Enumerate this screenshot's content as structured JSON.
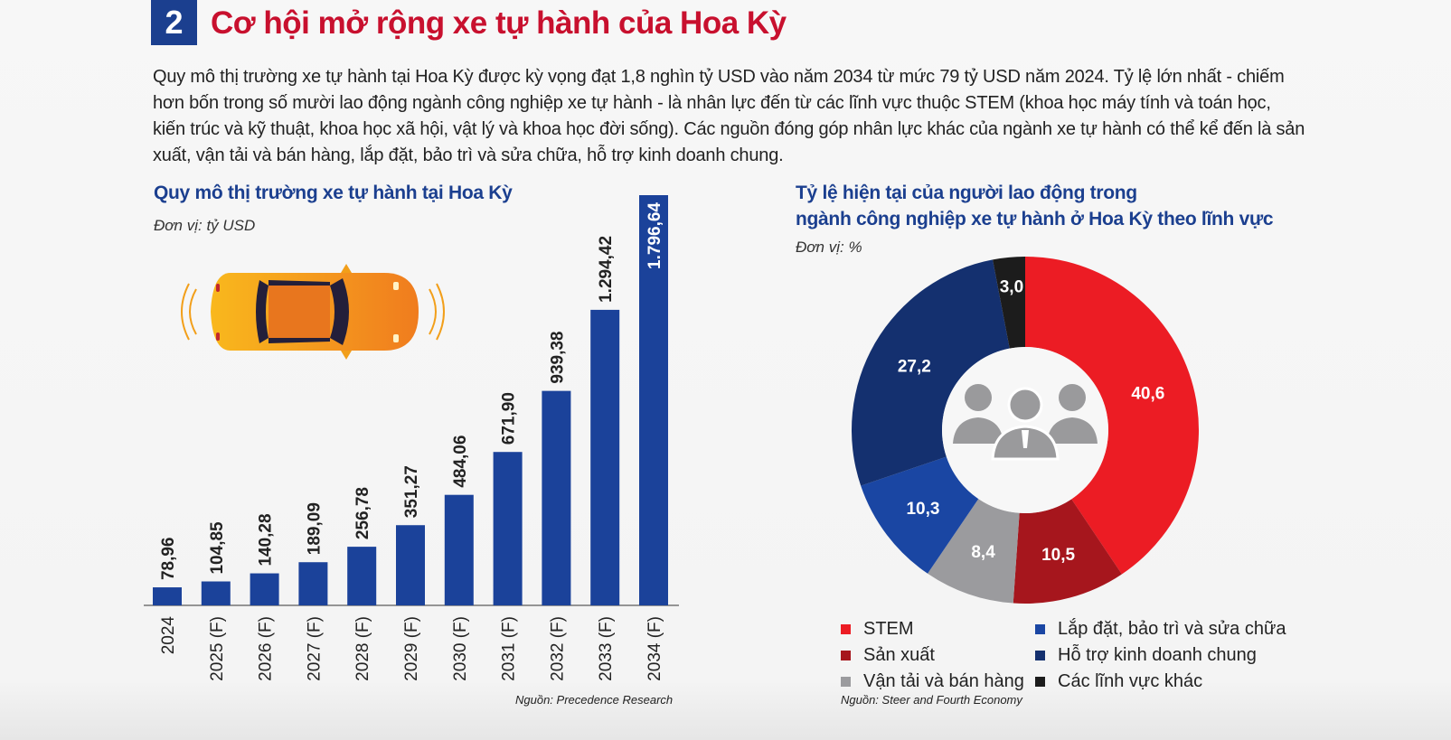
{
  "header": {
    "number": "2",
    "title": "Cơ hội mở rộng xe tự hành của Hoa Kỳ",
    "intro": "Quy mô thị trường xe tự hành tại Hoa Kỳ được kỳ vọng đạt 1,8 nghìn tỷ USD vào năm 2034 từ mức 79 tỷ USD năm 2024. Tỷ lệ lớn nhất - chiếm hơn bốn trong số mười lao động ngành công nghiệp xe tự hành - là nhân lực đến từ các lĩnh vực thuộc STEM (khoa học máy tính và toán học, kiến trúc và kỹ thuật, khoa học xã hội, vật lý và khoa học đời sống). Các nguồn đóng góp nhân lực khác của ngành xe tự hành có thể kể đến là sản xuất, vận tải và bán hàng, lắp đặt, bảo trì và sửa chữa, hỗ trợ kinh doanh chung."
  },
  "left_panel": {
    "title": "Quy mô thị trường xe tự hành tại Hoa Kỳ",
    "unit": "Đơn vị: tỷ USD",
    "source": "Nguồn: Precedence Research",
    "illustration": "car-top-view-icon"
  },
  "right_panel": {
    "title_line1": "Tỷ lệ hiện tại của người lao động trong",
    "title_line2": "ngành công nghiệp xe tự hành ở Hoa Kỳ theo lĩnh vực",
    "unit": "Đơn vị: %",
    "source": "Nguồn: Steer and Fourth Economy",
    "center_icon": "people-group-icon"
  },
  "chart_data": [
    {
      "type": "bar",
      "title": "Quy mô thị trường xe tự hành tại Hoa Kỳ",
      "ylabel": "",
      "unit": "tỷ USD",
      "categories": [
        "2024",
        "2025 (F)",
        "2026 (F)",
        "2027 (F)",
        "2028 (F)",
        "2029 (F)",
        "2030 (F)",
        "2031 (F)",
        "2032 (F)",
        "2033 (F)",
        "2034 (F)"
      ],
      "values": [
        78.96,
        104.85,
        140.28,
        189.09,
        256.78,
        351.27,
        484.06,
        671.9,
        939.38,
        1294.42,
        1796.64
      ],
      "value_labels": [
        "78,96",
        "104,85",
        "140,28",
        "189,09",
        "256,78",
        "351,27",
        "484,06",
        "671,90",
        "939,38",
        "1.294,42",
        "1.796,64"
      ],
      "color": "#1b429a",
      "grid": false
    },
    {
      "type": "pie",
      "subtype": "donut",
      "title": "Tỷ lệ hiện tại của người lao động trong ngành công nghiệp xe tự hành ở Hoa Kỳ theo lĩnh vực",
      "unit": "%",
      "slices": [
        {
          "label": "STEM",
          "value": 40.6,
          "display": "40,6",
          "color": "#ec1c24"
        },
        {
          "label": "Sản xuất",
          "value": 10.5,
          "display": "10,5",
          "color": "#a6161d"
        },
        {
          "label": "Vận tải và bán hàng",
          "value": 8.4,
          "display": "8,4",
          "color": "#9b9b9e"
        },
        {
          "label": "Lắp đặt, bảo trì và sửa chữa",
          "value": 10.3,
          "display": "10,3",
          "color": "#1a46a3"
        },
        {
          "label": "Hỗ trợ kinh doanh chung",
          "value": 27.2,
          "display": "27,2",
          "color": "#14306f"
        },
        {
          "label": "Các lĩnh vực khác",
          "value": 3.0,
          "display": "3,0",
          "color": "#1c1c1c"
        }
      ],
      "legend_placement": "bottom"
    }
  ]
}
